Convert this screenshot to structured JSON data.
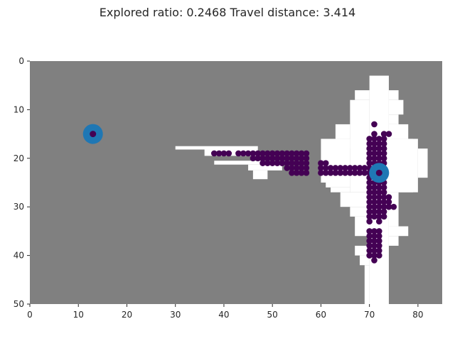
{
  "figure": {
    "title": "Explored ratio: 0.2468  Travel distance: 3.414"
  },
  "colors": {
    "unknown": "#808080",
    "free": "#ffffff",
    "path": "#440154",
    "marker_ring": "#1f77b4",
    "marker_center": "#440154"
  },
  "chart_data": {
    "type": "heatmap",
    "title": "Explored ratio: 0.2468  Travel distance: 3.414",
    "xlim": [
      0,
      85
    ],
    "ylim": [
      50,
      0
    ],
    "x_ticks": [
      0,
      10,
      20,
      30,
      40,
      50,
      60,
      70,
      80
    ],
    "y_ticks": [
      0,
      10,
      20,
      30,
      40,
      50
    ],
    "background": "unknown",
    "free_rects": [
      [
        30,
        17.5,
        47,
        18.2
      ],
      [
        36,
        18.2,
        47,
        19.5
      ],
      [
        38,
        20.5,
        48,
        21.3
      ],
      [
        45,
        21.3,
        52,
        22.5
      ],
      [
        46,
        22.5,
        49,
        24.3
      ],
      [
        60,
        16,
        66,
        25
      ],
      [
        61,
        25,
        66,
        26
      ],
      [
        62,
        26,
        66,
        27
      ],
      [
        66,
        8,
        70,
        18
      ],
      [
        67,
        6,
        70,
        8
      ],
      [
        66,
        16,
        79,
        27
      ],
      [
        63,
        13,
        66,
        16
      ],
      [
        64,
        27,
        70,
        30
      ],
      [
        66,
        30,
        70,
        32
      ],
      [
        67,
        32,
        70,
        36
      ],
      [
        67,
        38,
        70,
        40
      ],
      [
        70,
        3,
        74,
        50
      ],
      [
        74,
        6,
        76,
        8
      ],
      [
        74,
        8,
        77,
        11
      ],
      [
        74,
        11,
        76,
        13
      ],
      [
        74,
        13,
        78,
        16
      ],
      [
        74,
        16,
        80,
        27
      ],
      [
        80,
        18,
        82,
        24
      ],
      [
        74,
        27,
        76,
        34
      ],
      [
        74,
        34,
        78,
        36
      ],
      [
        74,
        36,
        76,
        38
      ],
      [
        68,
        40,
        70,
        42
      ],
      [
        69,
        42,
        70,
        50
      ]
    ],
    "path_points": [
      [
        38,
        19
      ],
      [
        39,
        19
      ],
      [
        40,
        19
      ],
      [
        41,
        19
      ],
      [
        43,
        19
      ],
      [
        44,
        19
      ],
      [
        45,
        19
      ],
      [
        46,
        19
      ],
      [
        47,
        19
      ],
      [
        48,
        19
      ],
      [
        49,
        19
      ],
      [
        50,
        19
      ],
      [
        51,
        19
      ],
      [
        52,
        19
      ],
      [
        53,
        19
      ],
      [
        54,
        19
      ],
      [
        55,
        19
      ],
      [
        56,
        19
      ],
      [
        57,
        19
      ],
      [
        46,
        20
      ],
      [
        47,
        20
      ],
      [
        48,
        20
      ],
      [
        49,
        20
      ],
      [
        50,
        20
      ],
      [
        51,
        20
      ],
      [
        52,
        20
      ],
      [
        53,
        20
      ],
      [
        54,
        20
      ],
      [
        55,
        20
      ],
      [
        56,
        20
      ],
      [
        57,
        20
      ],
      [
        48,
        21
      ],
      [
        49,
        21
      ],
      [
        50,
        21
      ],
      [
        51,
        21
      ],
      [
        52,
        21
      ],
      [
        53,
        21
      ],
      [
        54,
        21
      ],
      [
        55,
        21
      ],
      [
        56,
        21
      ],
      [
        57,
        21
      ],
      [
        60,
        21
      ],
      [
        61,
        21
      ],
      [
        53,
        22
      ],
      [
        54,
        22
      ],
      [
        55,
        22
      ],
      [
        56,
        22
      ],
      [
        57,
        22
      ],
      [
        60,
        22
      ],
      [
        61,
        22
      ],
      [
        62,
        22
      ],
      [
        63,
        22
      ],
      [
        64,
        22
      ],
      [
        65,
        22
      ],
      [
        66,
        22
      ],
      [
        67,
        22
      ],
      [
        68,
        22
      ],
      [
        69,
        22
      ],
      [
        70,
        22
      ],
      [
        71,
        22
      ],
      [
        54,
        23
      ],
      [
        55,
        23
      ],
      [
        56,
        23
      ],
      [
        57,
        23
      ],
      [
        60,
        23
      ],
      [
        61,
        23
      ],
      [
        62,
        23
      ],
      [
        63,
        23
      ],
      [
        64,
        23
      ],
      [
        65,
        23
      ],
      [
        66,
        23
      ],
      [
        67,
        23
      ],
      [
        68,
        23
      ],
      [
        69,
        23
      ],
      [
        70,
        23
      ],
      [
        71,
        13
      ],
      [
        71,
        15
      ],
      [
        73,
        15
      ],
      [
        74,
        15
      ],
      [
        70,
        16
      ],
      [
        71,
        16
      ],
      [
        72,
        16
      ],
      [
        73,
        16
      ],
      [
        70,
        17
      ],
      [
        71,
        17
      ],
      [
        72,
        17
      ],
      [
        73,
        17
      ],
      [
        70,
        18
      ],
      [
        71,
        18
      ],
      [
        72,
        18
      ],
      [
        73,
        18
      ],
      [
        70,
        19
      ],
      [
        71,
        19
      ],
      [
        72,
        19
      ],
      [
        73,
        19
      ],
      [
        70,
        20
      ],
      [
        71,
        20
      ],
      [
        72,
        20
      ],
      [
        73,
        20
      ],
      [
        70,
        21
      ],
      [
        71,
        21
      ],
      [
        72,
        21
      ],
      [
        73,
        21
      ],
      [
        70,
        24
      ],
      [
        71,
        24
      ],
      [
        72,
        24
      ],
      [
        73,
        24
      ],
      [
        70,
        25
      ],
      [
        71,
        25
      ],
      [
        72,
        25
      ],
      [
        73,
        25
      ],
      [
        70,
        26
      ],
      [
        71,
        26
      ],
      [
        72,
        26
      ],
      [
        73,
        26
      ],
      [
        70,
        27
      ],
      [
        71,
        27
      ],
      [
        72,
        27
      ],
      [
        73,
        27
      ],
      [
        70,
        28
      ],
      [
        71,
        28
      ],
      [
        72,
        28
      ],
      [
        73,
        28
      ],
      [
        74,
        28
      ],
      [
        70,
        29
      ],
      [
        71,
        29
      ],
      [
        72,
        29
      ],
      [
        73,
        29
      ],
      [
        74,
        29
      ],
      [
        70,
        30
      ],
      [
        71,
        30
      ],
      [
        72,
        30
      ],
      [
        73,
        30
      ],
      [
        74,
        30
      ],
      [
        75,
        30
      ],
      [
        70,
        31
      ],
      [
        71,
        31
      ],
      [
        72,
        31
      ],
      [
        73,
        31
      ],
      [
        70,
        32
      ],
      [
        71,
        32
      ],
      [
        72,
        32
      ],
      [
        73,
        32
      ],
      [
        70,
        33
      ],
      [
        72,
        33
      ],
      [
        70,
        35
      ],
      [
        71,
        35
      ],
      [
        72,
        35
      ],
      [
        70,
        36
      ],
      [
        71,
        36
      ],
      [
        72,
        36
      ],
      [
        70,
        37
      ],
      [
        71,
        37
      ],
      [
        72,
        37
      ],
      [
        70,
        38
      ],
      [
        71,
        38
      ],
      [
        72,
        38
      ],
      [
        70,
        39
      ],
      [
        71,
        39
      ],
      [
        72,
        39
      ],
      [
        70,
        40
      ],
      [
        71,
        40
      ],
      [
        72,
        40
      ],
      [
        71,
        41
      ]
    ],
    "markers": [
      {
        "x": 13,
        "y": 15,
        "ring": "marker_ring",
        "center": "marker_center"
      },
      {
        "x": 72,
        "y": 23,
        "ring": "marker_ring",
        "center": "marker_center"
      }
    ]
  }
}
